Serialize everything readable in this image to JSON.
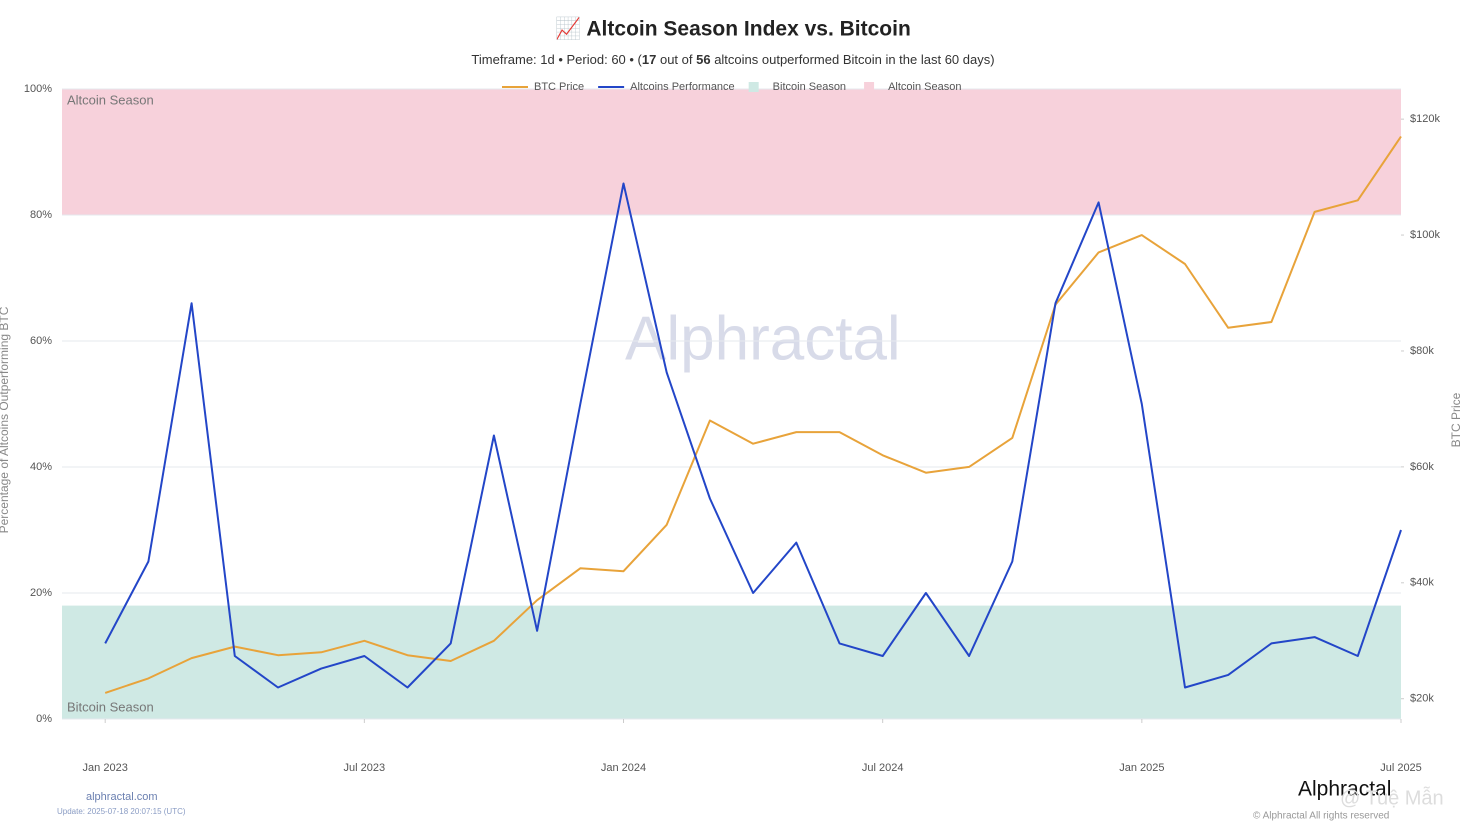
{
  "chart_data": {
    "type": "line",
    "title": "📈 Altcoin Season Index vs. Bitcoin",
    "subtitle": [
      "Timeframe: 1d  •  Period: 60  •  (",
      "17",
      " out of ",
      "56",
      " altcoins outperformed Bitcoin in the last 60 days)"
    ],
    "y_label": "Percentage of Altcoins Outperforming BTC",
    "y2_label": "BTC Price",
    "watermark": "Alphractal",
    "x": [
      "2023-01",
      "2023-02",
      "2023-03",
      "2023-04",
      "2023-05",
      "2023-06",
      "2023-07",
      "2023-08",
      "2023-09",
      "2023-10",
      "2023-11",
      "2023-12",
      "2024-01",
      "2024-02",
      "2024-03",
      "2024-04",
      "2024-05",
      "2024-06",
      "2024-07",
      "2024-08",
      "2024-09",
      "2024-10",
      "2024-11",
      "2024-12",
      "2025-01",
      "2025-02",
      "2025-03",
      "2025-04",
      "2025-05",
      "2025-06",
      "2025-07"
    ],
    "xlim": [
      "2022-12",
      "2025-07"
    ],
    "xticks": [
      {
        "value": "2023-01",
        "label": "Jan 2023"
      },
      {
        "value": "2023-07",
        "label": "Jul 2023"
      },
      {
        "value": "2024-01",
        "label": "Jan 2024"
      },
      {
        "value": "2024-07",
        "label": "Jul 2024"
      },
      {
        "value": "2025-01",
        "label": "Jan 2025"
      },
      {
        "value": "2025-07",
        "label": "Jul 2025"
      }
    ],
    "ylim": [
      0,
      100
    ],
    "yticks": [
      {
        "value": 0,
        "label": "0%"
      },
      {
        "value": 20,
        "label": "20%"
      },
      {
        "value": 40,
        "label": "40%"
      },
      {
        "value": 60,
        "label": "60%"
      },
      {
        "value": 80,
        "label": "80%"
      },
      {
        "value": 100,
        "label": "100%"
      }
    ],
    "y2lim": [
      16500,
      125200
    ],
    "y2ticks": [
      {
        "value": 20000,
        "label": "$20k"
      },
      {
        "value": 40000,
        "label": "$40k"
      },
      {
        "value": 60000,
        "label": "$60k"
      },
      {
        "value": 80000,
        "label": "$80k"
      },
      {
        "value": 100000,
        "label": "$100k"
      },
      {
        "value": 120000,
        "label": "$120k"
      }
    ],
    "grid": true,
    "bands": [
      {
        "name": "Bitcoin Season",
        "color": "#cfe9e4",
        "range": [
          0,
          18
        ]
      },
      {
        "name": "Altcoin Season",
        "color": "#f7d1db",
        "range": [
          80,
          100
        ]
      }
    ],
    "series": [
      {
        "name": "BTC Price",
        "color": "#e8a33a",
        "axis": "y2",
        "values": [
          21000,
          23500,
          27000,
          29000,
          27500,
          28000,
          30000,
          27500,
          26500,
          30000,
          37000,
          42500,
          42000,
          50000,
          68000,
          64000,
          66000,
          66000,
          62000,
          59000,
          60000,
          65000,
          88000,
          97000,
          100000,
          95000,
          84000,
          85000,
          104000,
          106000,
          117000
        ]
      },
      {
        "name": "Altcoins Performance",
        "color": "#2346c8",
        "values": [
          12,
          25,
          66,
          10,
          5,
          8,
          10,
          5,
          12,
          45,
          14,
          50,
          85,
          55,
          35,
          20,
          28,
          12,
          10,
          20,
          10,
          25,
          66,
          82,
          50,
          5,
          7,
          12,
          13,
          10,
          30
        ]
      }
    ],
    "footer": {
      "site": "alphractal.com",
      "update": "Update: 2025-07-18 20:07:15 (UTC)",
      "logo": "Alphractal",
      "rights": "© Alphractal All rights reserved",
      "user": "@ Tuệ Mẫn"
    }
  }
}
